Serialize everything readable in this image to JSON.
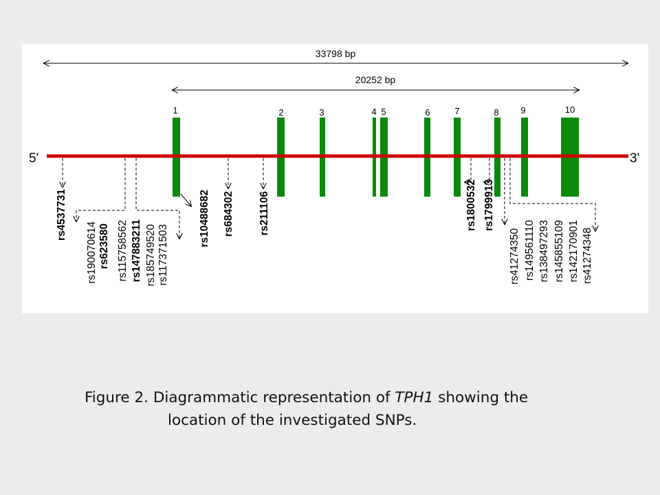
{
  "diagram": {
    "gene_span_label": "33798 bp",
    "coding_span_label": "20252 bp",
    "five_prime": "5'",
    "three_prime": "3'",
    "colors": {
      "backbone": "#cc0000",
      "exon": "#0a8a0a",
      "arrows": "#000000"
    },
    "exons": [
      {
        "number": "1"
      },
      {
        "number": "2"
      },
      {
        "number": "3"
      },
      {
        "number": "4"
      },
      {
        "number": "5"
      },
      {
        "number": "6"
      },
      {
        "number": "7"
      },
      {
        "number": "8"
      },
      {
        "number": "9"
      },
      {
        "number": "10"
      }
    ],
    "snps": [
      {
        "id": "rs4537731",
        "bold": true
      },
      {
        "id": "rs190070614",
        "bold": false
      },
      {
        "id": "rs623580",
        "bold": true
      },
      {
        "id": "rs115758562",
        "bold": false
      },
      {
        "id": "rs147883211",
        "bold": true
      },
      {
        "id": "rs185749520",
        "bold": false
      },
      {
        "id": "rs117371503",
        "bold": false
      },
      {
        "id": "rs10488682",
        "bold": true
      },
      {
        "id": "rs684302",
        "bold": true
      },
      {
        "id": "rs211106",
        "bold": true
      },
      {
        "id": "rs1800532",
        "bold": true
      },
      {
        "id": "rs1799913",
        "bold": true
      },
      {
        "id": "rs41274350",
        "bold": false
      },
      {
        "id": "rs149561110",
        "bold": false
      },
      {
        "id": "rs138497293",
        "bold": false
      },
      {
        "id": "rs145855109",
        "bold": false
      },
      {
        "id": "rs142170901",
        "bold": false
      },
      {
        "id": "rs41274348",
        "bold": false
      }
    ]
  },
  "caption": {
    "line1_prefix": "Figure 2. Diagrammatic representation  of ",
    "gene": "TPH1",
    "line1_suffix": " showing the",
    "line2": "location of the investigated SNPs."
  }
}
